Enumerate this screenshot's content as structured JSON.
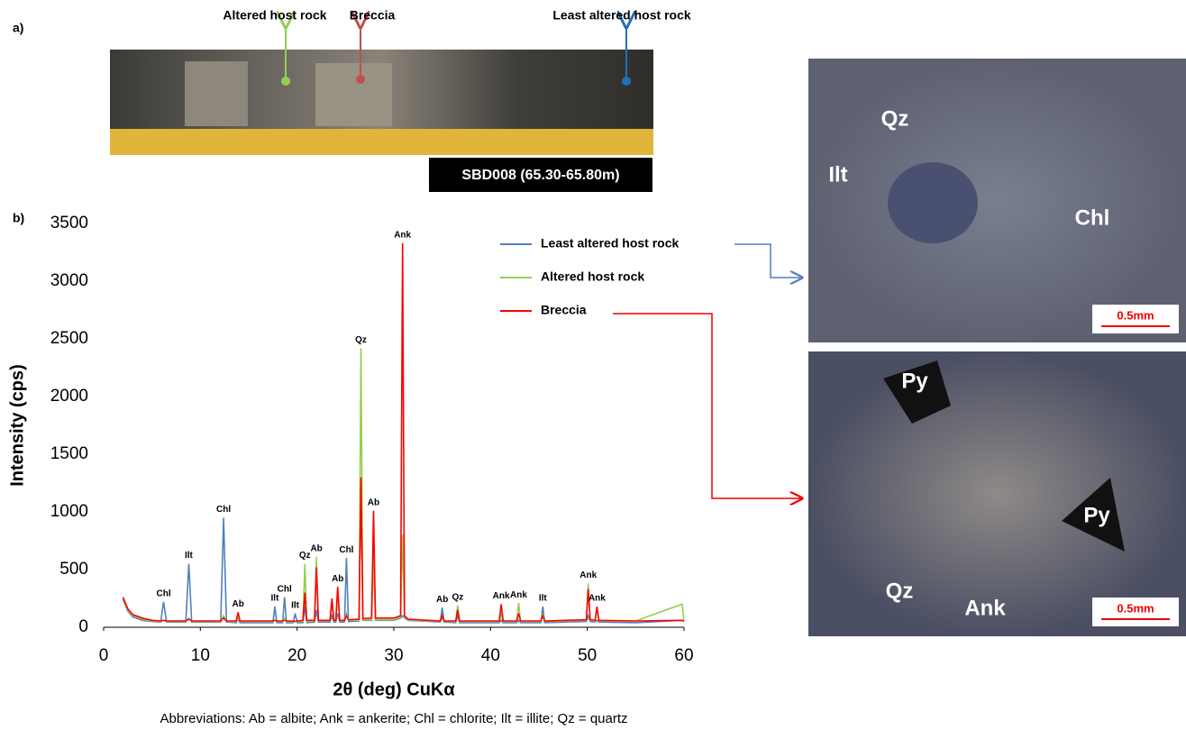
{
  "panel_labels": [
    "a)",
    "b)"
  ],
  "core": {
    "labels": [
      "Altered host rock",
      "Breccia",
      "Least altered host rock"
    ],
    "sample": "SBD008 (65.30-65.80m)"
  },
  "micrographs": [
    {
      "minerals": [
        "Qz",
        "Ilt",
        "Chl"
      ],
      "scale": "0.5mm"
    },
    {
      "minerals": [
        "Py",
        "Py",
        "Qz",
        "Ank"
      ],
      "scale": "0.5mm"
    }
  ],
  "chart_data": {
    "type": "line",
    "x_label": "2θ (deg) CuKα",
    "y_label": "Intensity (cps)",
    "xlim": [
      0,
      60
    ],
    "xticks": [
      0,
      10,
      20,
      30,
      40,
      50,
      60
    ],
    "ylim": [
      0,
      3500
    ],
    "yticks": [
      0,
      500,
      1000,
      1500,
      2000,
      2500,
      3000,
      3500
    ],
    "x": [
      2,
      2.5,
      3,
      4,
      5,
      5.9,
      6.2,
      6.5,
      8.5,
      8.8,
      9.1,
      12.1,
      12.4,
      12.7,
      13.7,
      13.9,
      14.1,
      17.5,
      17.7,
      17.9,
      18.5,
      18.7,
      18.9,
      19.6,
      19.8,
      20.0,
      20.6,
      20.8,
      21.0,
      21.8,
      22.0,
      22.2,
      23.4,
      23.6,
      23.8,
      24.0,
      24.2,
      24.4,
      24.9,
      25.1,
      25.3,
      26.4,
      26.6,
      26.8,
      27.7,
      27.9,
      28.1,
      30.0,
      30.7,
      30.9,
      31.1,
      31.5,
      34.8,
      35.0,
      35.2,
      36.4,
      36.6,
      36.8,
      40.9,
      41.1,
      41.3,
      42.7,
      42.9,
      43.1,
      45.2,
      45.4,
      45.6,
      49.9,
      50.1,
      50.3,
      50.8,
      51.0,
      51.2,
      55,
      59.8,
      60
    ],
    "series": [
      {
        "name": "Least altered host rock",
        "color": "#4f81bd",
        "values": [
          240,
          140,
          90,
          60,
          50,
          45,
          220,
          45,
          45,
          550,
          45,
          45,
          950,
          45,
          40,
          70,
          40,
          40,
          180,
          40,
          40,
          260,
          40,
          40,
          120,
          40,
          40,
          180,
          40,
          45,
          150,
          45,
          45,
          100,
          45,
          45,
          120,
          45,
          45,
          600,
          50,
          55,
          1300,
          60,
          60,
          800,
          60,
          60,
          80,
          100,
          80,
          60,
          45,
          170,
          45,
          40,
          100,
          40,
          40,
          60,
          40,
          40,
          60,
          40,
          40,
          180,
          40,
          50,
          100,
          50,
          45,
          60,
          45,
          40,
          60,
          50
        ]
      },
      {
        "name": "Altered host rock",
        "color": "#92d050",
        "values": [
          250,
          150,
          100,
          70,
          55,
          50,
          60,
          50,
          50,
          80,
          50,
          50,
          100,
          50,
          50,
          80,
          50,
          50,
          60,
          50,
          50,
          80,
          50,
          50,
          50,
          50,
          50,
          550,
          50,
          55,
          610,
          55,
          55,
          200,
          55,
          55,
          300,
          55,
          55,
          120,
          60,
          60,
          2420,
          65,
          65,
          600,
          65,
          65,
          90,
          800,
          90,
          65,
          50,
          80,
          50,
          50,
          190,
          50,
          50,
          120,
          50,
          50,
          210,
          50,
          50,
          120,
          50,
          60,
          380,
          60,
          55,
          150,
          55,
          55,
          200,
          60
        ]
      },
      {
        "name": "Breccia",
        "color": "#ff0000",
        "values": [
          260,
          160,
          110,
          80,
          60,
          55,
          60,
          55,
          55,
          70,
          55,
          55,
          80,
          55,
          55,
          130,
          55,
          55,
          60,
          55,
          55,
          60,
          55,
          55,
          50,
          55,
          60,
          300,
          60,
          60,
          520,
          60,
          60,
          250,
          60,
          60,
          350,
          60,
          60,
          100,
          65,
          70,
          1300,
          75,
          80,
          1010,
          80,
          80,
          100,
          3330,
          100,
          70,
          55,
          100,
          55,
          55,
          150,
          55,
          55,
          200,
          55,
          55,
          120,
          55,
          55,
          100,
          55,
          65,
          330,
          65,
          60,
          180,
          60,
          55,
          60,
          55
        ]
      }
    ],
    "annotations": [
      {
        "text": "Chl",
        "x": 6.2,
        "y": 220
      },
      {
        "text": "Ilt",
        "x": 8.8,
        "y": 550
      },
      {
        "text": "Chl",
        "x": 12.4,
        "y": 950
      },
      {
        "text": "Ab",
        "x": 13.9,
        "y": 130
      },
      {
        "text": "Ilt",
        "x": 17.7,
        "y": 180
      },
      {
        "text": "Chl",
        "x": 18.7,
        "y": 260
      },
      {
        "text": "Ilt",
        "x": 19.8,
        "y": 120
      },
      {
        "text": "Qz",
        "x": 20.8,
        "y": 550
      },
      {
        "text": "Ab",
        "x": 22.0,
        "y": 610
      },
      {
        "text": "Ab",
        "x": 24.2,
        "y": 350
      },
      {
        "text": "Chl",
        "x": 25.1,
        "y": 600
      },
      {
        "text": "Qz",
        "x": 26.6,
        "y": 2420
      },
      {
        "text": "Ab",
        "x": 27.9,
        "y": 1010
      },
      {
        "text": "Ank",
        "x": 30.9,
        "y": 3330
      },
      {
        "text": "Ab",
        "x": 35.0,
        "y": 170
      },
      {
        "text": "Qz",
        "x": 36.6,
        "y": 190
      },
      {
        "text": "Ank",
        "x": 41.1,
        "y": 200
      },
      {
        "text": "Ank",
        "x": 42.9,
        "y": 210
      },
      {
        "text": "Ilt",
        "x": 45.4,
        "y": 180
      },
      {
        "text": "Ank",
        "x": 50.1,
        "y": 380
      },
      {
        "text": "Ank",
        "x": 51.0,
        "y": 180
      }
    ]
  },
  "footnote": "Abbreviations: Ab = albite; Ank = ankerite; Chl = chlorite; Ilt = illite; Qz = quartz"
}
